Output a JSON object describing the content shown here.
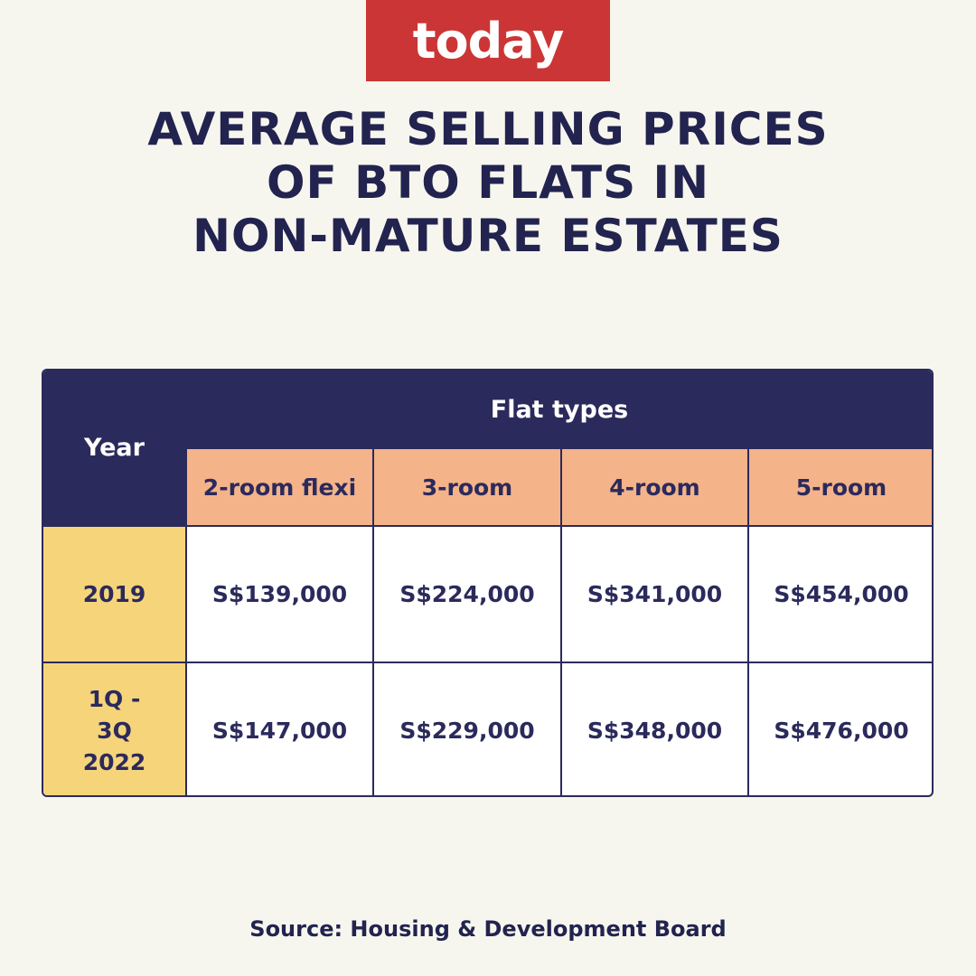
{
  "logo": {
    "text": "today",
    "bg_color": "#cc3535"
  },
  "title_lines": [
    "AVERAGE SELLING PRICES",
    "OF BTO FLATS IN",
    "NON-MATURE ESTATES"
  ],
  "chart_data": {
    "type": "table",
    "title": "AVERAGE SELLING PRICES OF BTO FLATS IN NON-MATURE ESTATES",
    "row_header": "Year",
    "column_group_header": "Flat types",
    "columns": [
      "2-room flexi",
      "3-room",
      "4-room",
      "5-room"
    ],
    "rows": [
      {
        "year": "2019",
        "values": [
          "S$139,000",
          "S$224,000",
          "S$341,000",
          "S$454,000"
        ]
      },
      {
        "year": "1Q - 3Q 2022",
        "values": [
          "S$147,000",
          "S$229,000",
          "S$348,000",
          "S$476,000"
        ]
      }
    ]
  },
  "source": "Source: Housing & Development Board"
}
